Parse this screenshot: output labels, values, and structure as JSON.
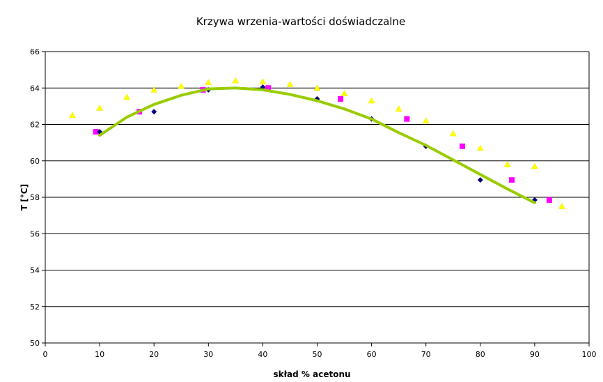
{
  "chart_data": {
    "type": "scatter",
    "title": "Krzywa wrzenia-wartości doświadczalne",
    "xlabel": "skład % acetonu",
    "ylabel": "T [°C]",
    "xlim": [
      0,
      100
    ],
    "ylim": [
      50,
      66
    ],
    "x_ticks": [
      0,
      10,
      20,
      30,
      40,
      50,
      60,
      70,
      80,
      90,
      100
    ],
    "y_ticks": [
      50,
      52,
      54,
      56,
      58,
      60,
      62,
      64,
      66
    ],
    "grid": "horizontal",
    "legend": "none",
    "series": [
      {
        "marker": "triangle",
        "color": "#ffff00",
        "x": [
          5,
          10,
          15,
          20,
          25,
          30,
          35,
          40,
          45,
          50,
          55,
          60,
          65,
          70,
          75,
          80,
          85,
          90,
          95
        ],
        "y": [
          62.5,
          62.9,
          63.5,
          63.9,
          64.1,
          64.3,
          64.4,
          64.35,
          64.2,
          64.0,
          63.7,
          63.3,
          62.85,
          62.2,
          61.5,
          60.7,
          59.8,
          59.7,
          57.5
        ]
      },
      {
        "marker": "square",
        "color": "#ff00ff",
        "x": [
          9.3,
          17.3,
          29,
          41,
          54.3,
          66.5,
          76.7,
          85.8,
          92.7
        ],
        "y": [
          61.6,
          62.7,
          63.9,
          64.0,
          63.4,
          62.3,
          60.8,
          58.95,
          57.85
        ]
      },
      {
        "marker": "diamond",
        "color": "#000080",
        "x": [
          10,
          20,
          30,
          40,
          50,
          60,
          70,
          80,
          90
        ],
        "y": [
          61.6,
          62.7,
          63.9,
          64.05,
          63.4,
          62.3,
          60.8,
          58.95,
          57.85
        ]
      },
      {
        "marker": "line",
        "color": "#99cc00",
        "x": [
          10,
          15,
          20,
          25,
          30,
          35,
          40,
          45,
          50,
          55,
          60,
          65,
          70,
          75,
          80,
          85,
          90
        ],
        "y": [
          61.4,
          62.4,
          63.1,
          63.6,
          63.95,
          64.0,
          63.9,
          63.65,
          63.3,
          62.85,
          62.3,
          61.55,
          60.85,
          60.05,
          59.25,
          58.45,
          57.7
        ]
      }
    ]
  }
}
